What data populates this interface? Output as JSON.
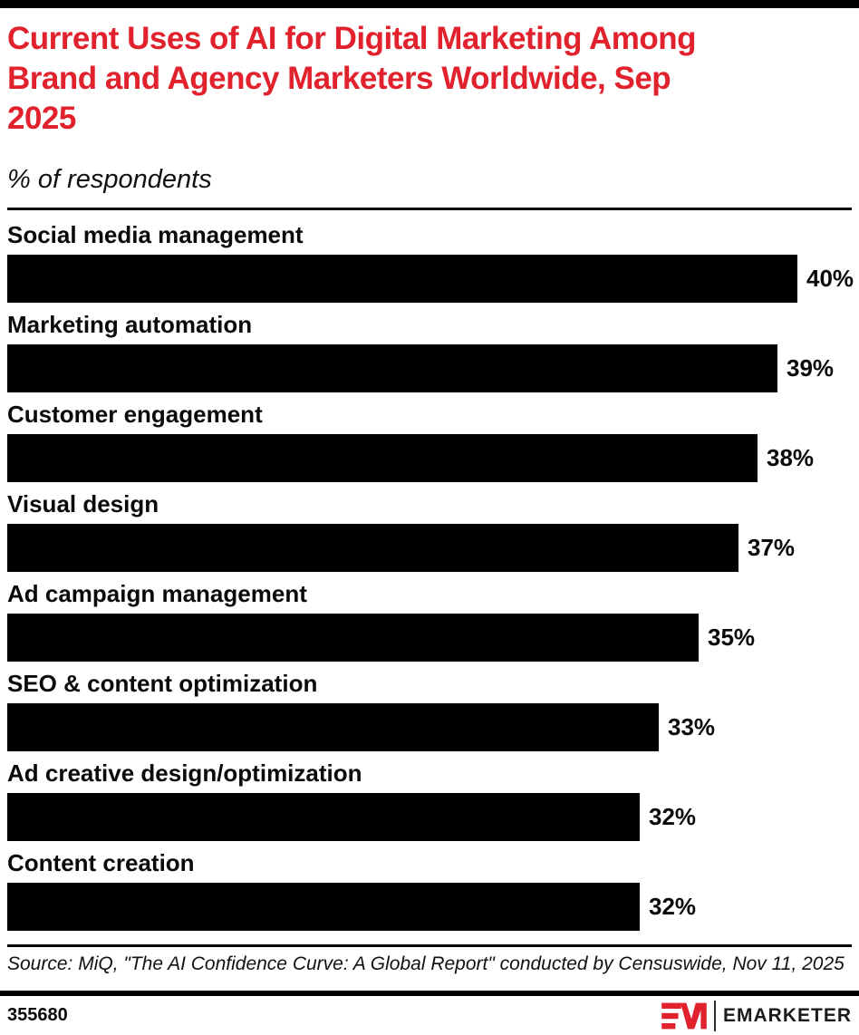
{
  "header": {
    "title_lines": [
      "Current Uses of AI for Digital Marketing Among",
      "Brand and Agency Marketers Worldwide, Sep",
      "2025"
    ],
    "subtitle": "% of respondents",
    "title_color": "#e1222d"
  },
  "chart_data": {
    "type": "bar",
    "orientation": "horizontal",
    "title": "Current Uses of AI for Digital Marketing Among Brand and Agency Marketers Worldwide, Sep 2025",
    "subtitle": "% of respondents",
    "categories": [
      "Social media management",
      "Marketing automation",
      "Customer engagement",
      "Visual design",
      "Ad campaign management",
      "SEO & content optimization",
      "Ad creative design/optimization",
      "Content creation"
    ],
    "values": [
      40,
      39,
      38,
      37,
      35,
      33,
      32,
      32
    ],
    "value_suffix": "%",
    "xlim": [
      0,
      43
    ],
    "bar_color": "#000000",
    "grid": false,
    "legend": null,
    "value_labels": "outside-end"
  },
  "footer": {
    "source": "Source: MiQ, \"The AI Confidence Curve: A Global Report\" conducted by Censuswide, Nov 11, 2025",
    "chart_id": "355680",
    "brand": {
      "logo_text": "EMARKETER",
      "mark_color": "#e1222d"
    }
  }
}
